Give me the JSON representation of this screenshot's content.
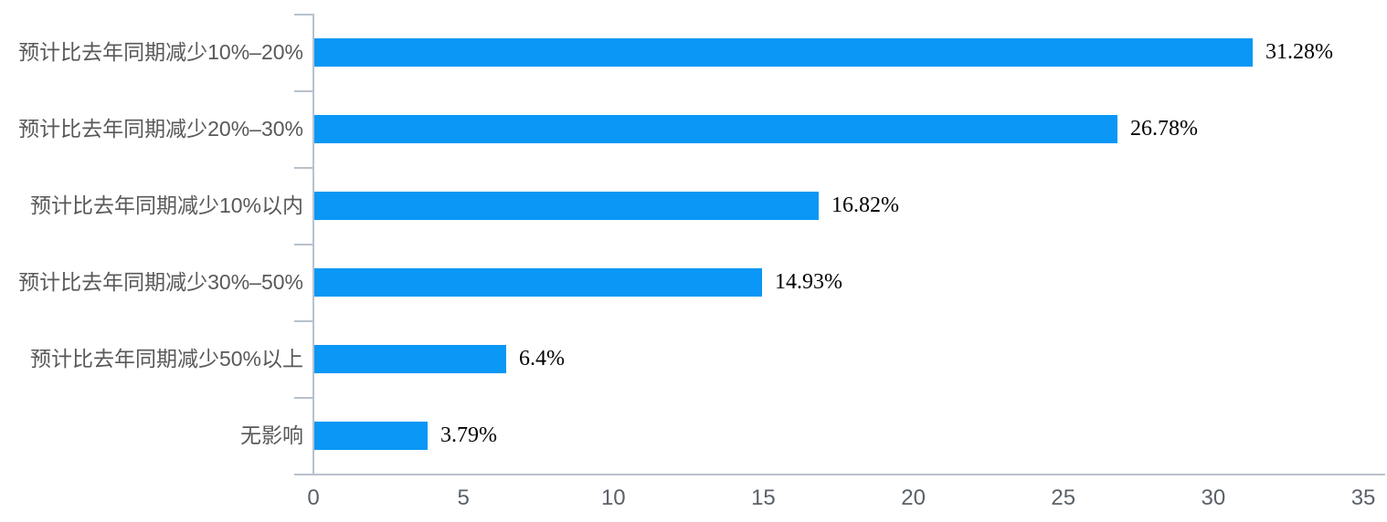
{
  "chart_data": {
    "type": "bar",
    "orientation": "horizontal",
    "title": "",
    "xlabel": "",
    "ylabel": "",
    "categories": [
      "预计比去年同期减少10%–20%",
      "预计比去年同期减少20%–30%",
      "预计比去年同期减少10%以内",
      "预计比去年同期减少30%–50%",
      "预计比去年同期减少50%以上",
      "无影响"
    ],
    "values": [
      31.28,
      26.78,
      16.82,
      14.93,
      6.4,
      3.79
    ],
    "value_labels": [
      "31.28%",
      "26.78%",
      "16.82%",
      "14.93%",
      "6.4%",
      "3.79%"
    ],
    "xlim": [
      0,
      35
    ],
    "x_ticks": [
      "0",
      "5",
      "10",
      "15",
      "20",
      "25",
      "30",
      "35"
    ],
    "grid": false,
    "legend": "none",
    "colors": {
      "bar": "#0a97f5",
      "axis": "#b7c1cb",
      "category_label": "#595959",
      "tick_label": "#5a6168",
      "value_label": "#000000",
      "background": "#ffffff"
    }
  }
}
